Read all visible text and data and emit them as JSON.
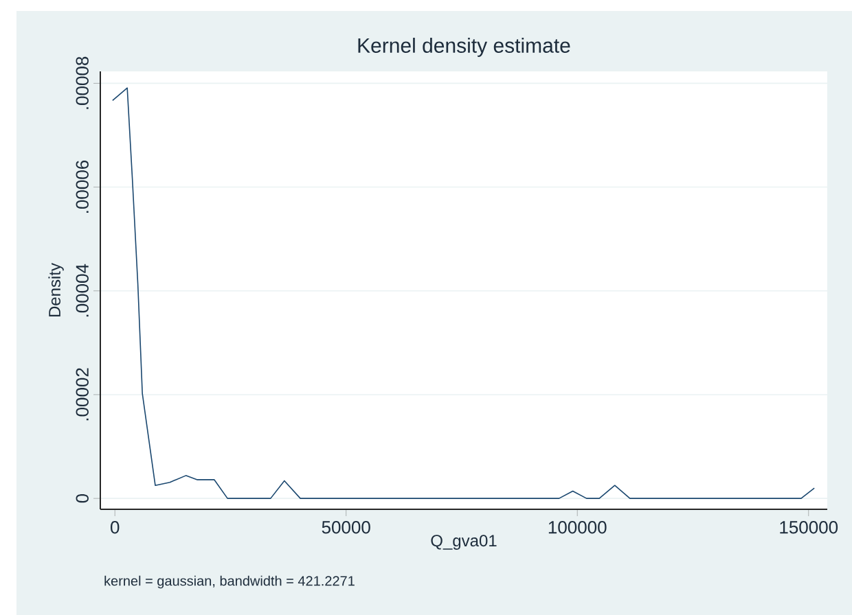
{
  "chart_data": {
    "type": "line",
    "title": "Kernel density estimate",
    "xlabel": "Q_gva01",
    "ylabel": "Density",
    "annotations": [
      "kernel = gaussian, bandwidth = 421.2271"
    ],
    "x": [
      -500,
      2670,
      3770,
      4960,
      5940,
      8730,
      11880,
      15350,
      17820,
      21500,
      24350,
      33680,
      36650,
      40100,
      96050,
      99020,
      101990,
      104750,
      108100,
      111370,
      148400,
      151250
    ],
    "series": [
      {
        "color": "#1a476f",
        "values": [
          7.67e-05,
          7.91e-05,
          6.17e-05,
          4.14e-05,
          2.02e-05,
          2.5e-06,
          3.1e-06,
          4.4e-06,
          3.6e-06,
          3.6e-06,
          0,
          0,
          3.4e-06,
          0,
          0,
          1.4e-06,
          0,
          0,
          2.5e-06,
          0,
          0,
          2e-06
        ]
      }
    ],
    "xlim": [
      -3150,
      154050
    ],
    "ylim": [
      -2.1e-06,
      8.23e-05
    ],
    "xticks": [
      0,
      50000,
      100000,
      150000
    ],
    "yticks": [
      0,
      {
        "value": 2e-05,
        "label": ".00002"
      },
      {
        "value": 4e-05,
        "label": ".00004"
      },
      {
        "value": 6e-05,
        "label": ".00006"
      },
      {
        "value": 8e-05,
        "label": ".00008"
      }
    ],
    "grid": "y"
  }
}
